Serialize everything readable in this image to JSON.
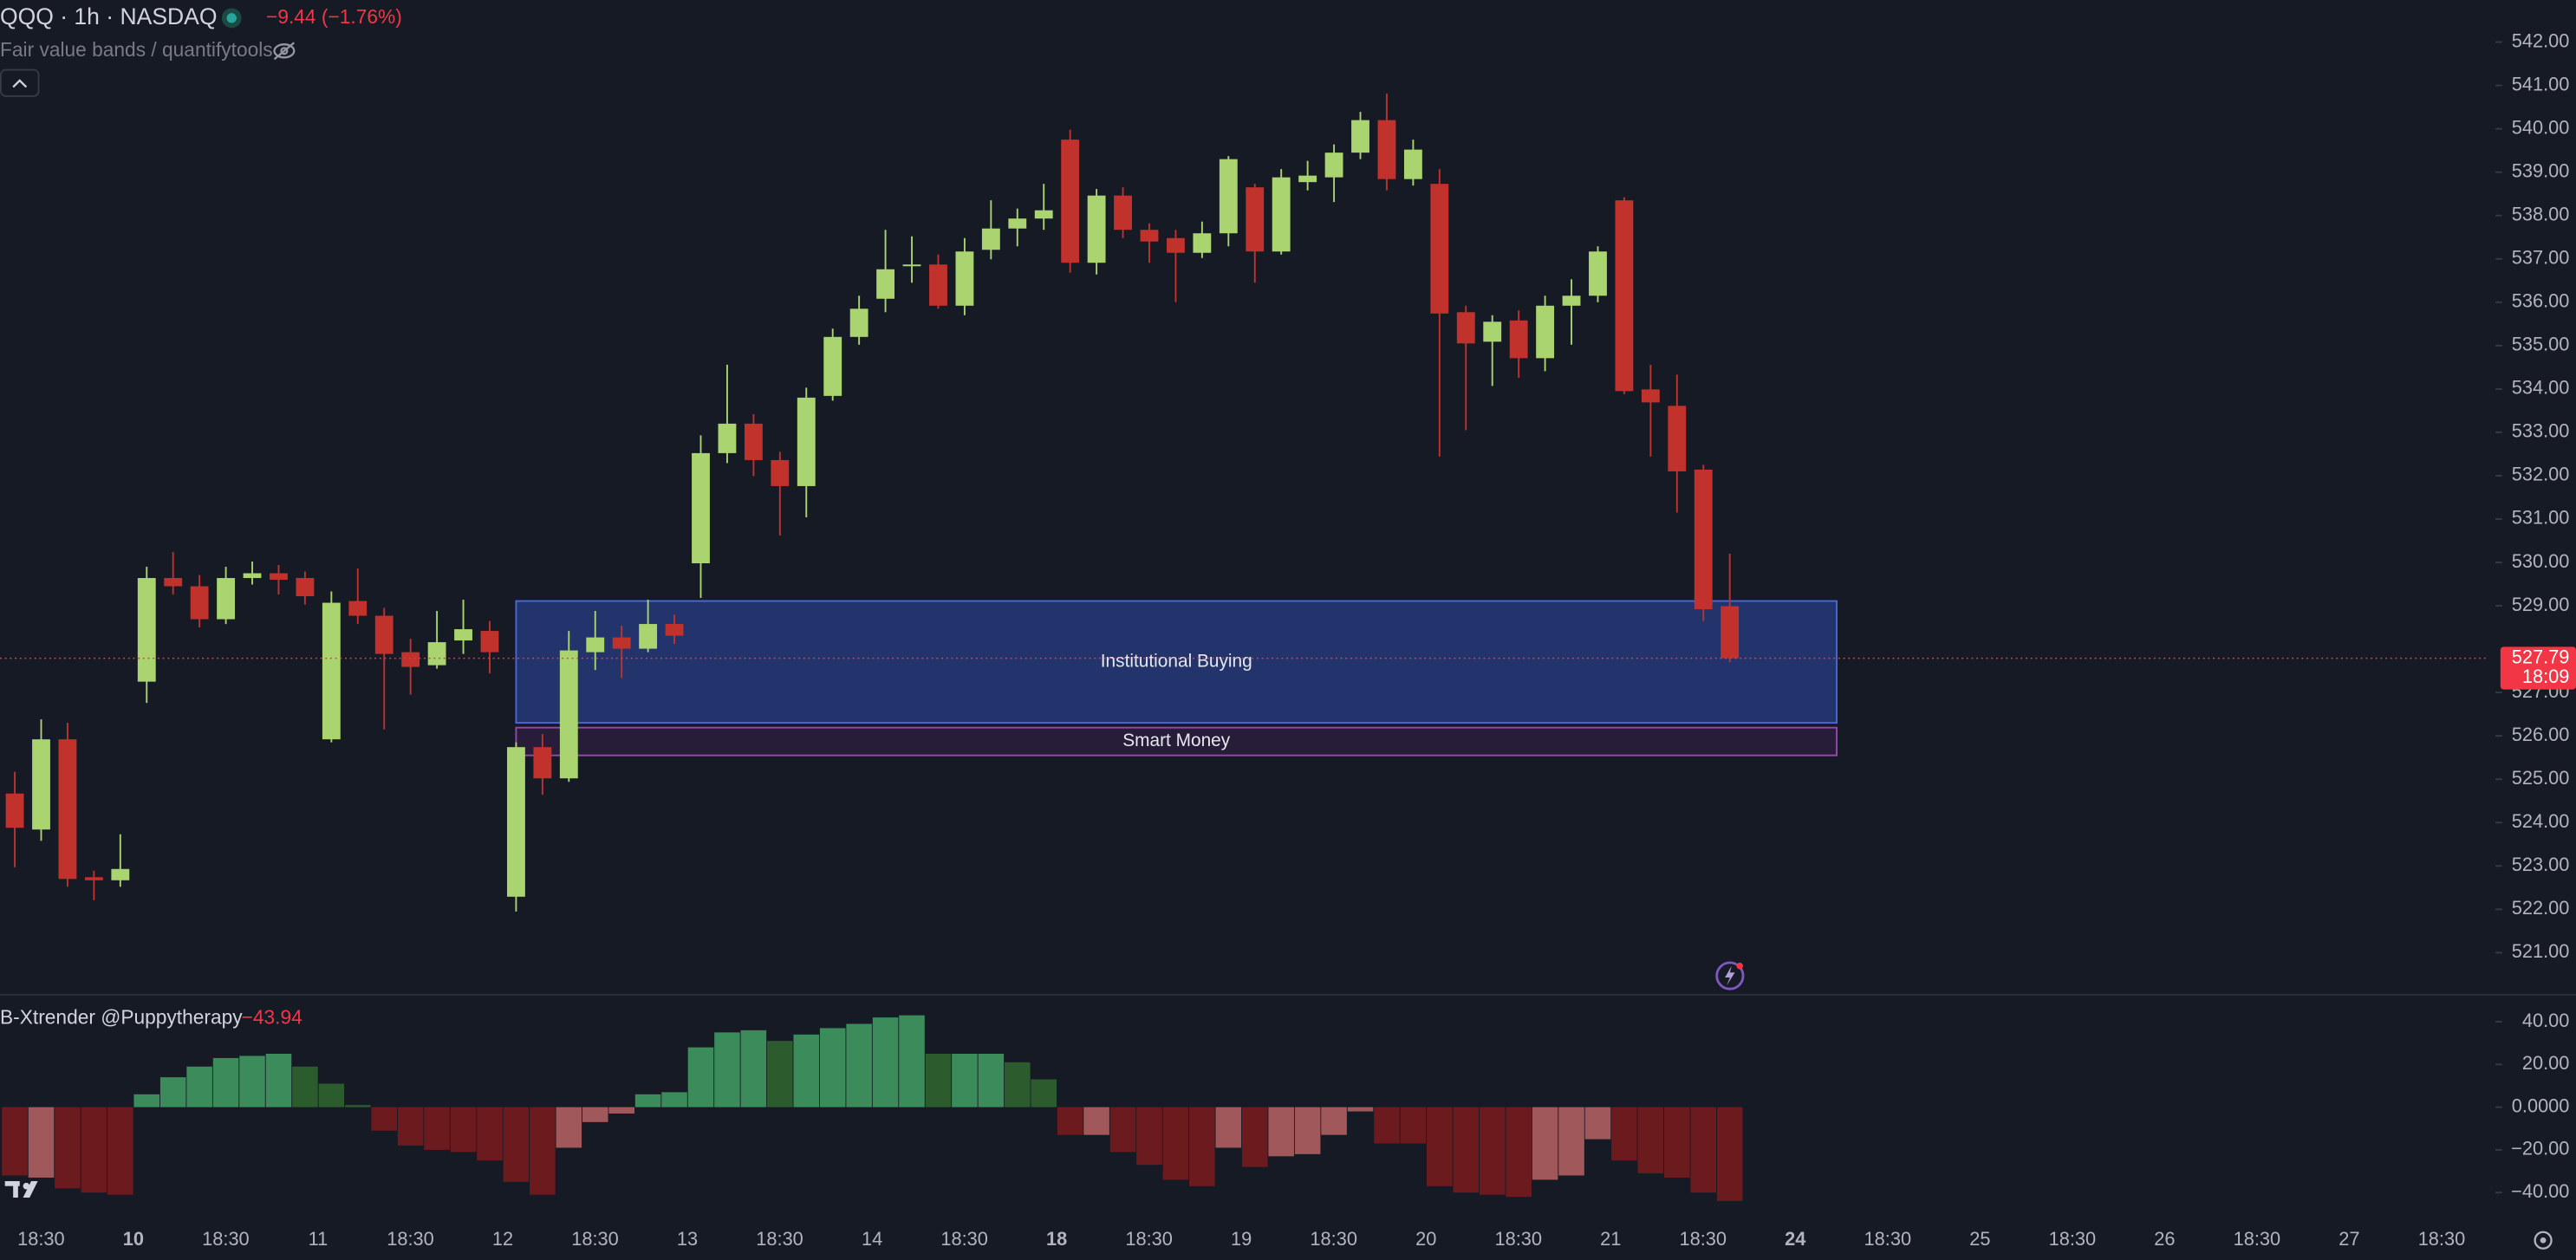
{
  "chart_data": [
    {
      "type": "candlestick",
      "title": "QQQ · 1h · NASDAQ",
      "change": "−9.44 (−1.76%)",
      "indicator": "Fair value bands / quantifytools",
      "up_color": "#a9d46f",
      "down_color": "#c1322d",
      "open": [
        524.67,
        523.84,
        525.92,
        522.74,
        522.67,
        527.25,
        529.64,
        529.45,
        528.69,
        529.64,
        529.75,
        529.64,
        525.92,
        529.11,
        528.77,
        527.93,
        527.63,
        528.2,
        528.42,
        522.29,
        525.74,
        525.02,
        527.93,
        528.27,
        528.01,
        528.58,
        529.98,
        532.52,
        533.2,
        532.36,
        531.76,
        533.84,
        535.2,
        536.08,
        536.83,
        536.87,
        535.92,
        537.21,
        537.7,
        537.93,
        539.75,
        536.91,
        538.46,
        537.67,
        537.48,
        537.14,
        537.59,
        538.65,
        537.17,
        538.77,
        538.88,
        539.45,
        540.2,
        538.84,
        538.73,
        535.77,
        535.09,
        535.58,
        534.71,
        535.92,
        536.15,
        538.35,
        533.99,
        533.61,
        532.14,
        528.99
      ],
      "high": [
        525.17,
        526.38,
        526.3,
        522.89,
        523.73,
        529.9,
        530.24,
        529.71,
        529.9,
        530.02,
        529.94,
        529.79,
        529.33,
        529.86,
        528.95,
        528.24,
        528.88,
        529.14,
        528.65,
        525.85,
        526.04,
        528.42,
        528.88,
        528.54,
        529.14,
        528.8,
        532.93,
        534.56,
        533.42,
        532.55,
        534.03,
        535.39,
        536.15,
        537.67,
        537.52,
        537.1,
        537.48,
        538.35,
        538.16,
        538.73,
        539.98,
        538.61,
        538.65,
        537.82,
        537.67,
        537.86,
        539.37,
        538.73,
        539.07,
        539.26,
        539.64,
        540.39,
        540.81,
        539.75,
        539.07,
        535.92,
        535.7,
        535.81,
        536.15,
        536.53,
        537.29,
        538.42,
        534.56,
        534.33,
        532.25,
        530.2
      ],
      "low": [
        522.97,
        523.58,
        522.52,
        522.21,
        522.52,
        526.76,
        529.26,
        528.5,
        528.58,
        529.49,
        529.26,
        529.03,
        525.85,
        528.58,
        526.15,
        526.95,
        527.55,
        527.89,
        527.44,
        521.95,
        524.64,
        524.94,
        527.52,
        527.33,
        527.93,
        528.12,
        529.18,
        532.29,
        531.99,
        530.62,
        531.04,
        533.73,
        535.02,
        535.77,
        536.45,
        535.85,
        535.7,
        536.99,
        537.29,
        537.67,
        536.68,
        536.64,
        537.48,
        536.91,
        536.0,
        537.02,
        537.29,
        536.45,
        537.1,
        538.58,
        538.31,
        539.3,
        538.58,
        538.69,
        532.44,
        533.05,
        534.07,
        534.26,
        534.41,
        535.02,
        536.0,
        533.88,
        532.44,
        531.15,
        528.65,
        527.7
      ],
      "close": [
        523.88,
        525.92,
        522.7,
        522.67,
        522.93,
        529.64,
        529.45,
        528.69,
        529.64,
        529.75,
        529.6,
        529.22,
        529.07,
        528.77,
        527.89,
        527.59,
        528.16,
        528.46,
        527.93,
        525.74,
        525.02,
        527.97,
        528.27,
        528.01,
        528.58,
        528.31,
        532.52,
        533.2,
        532.36,
        531.76,
        533.8,
        535.2,
        535.85,
        536.76,
        536.87,
        535.92,
        537.17,
        537.7,
        537.93,
        538.12,
        536.91,
        538.46,
        537.67,
        537.4,
        537.14,
        537.59,
        539.3,
        537.17,
        538.88,
        538.92,
        539.45,
        540.2,
        538.84,
        539.52,
        535.74,
        535.05,
        535.55,
        534.71,
        535.92,
        536.15,
        537.17,
        533.95,
        533.69,
        532.1,
        528.92,
        527.79
      ],
      "ylim": [
        520.05,
        542.97
      ],
      "yticks": [
        {
          "value": 521,
          "label": "521.00"
        },
        {
          "value": 522,
          "label": "522.00"
        },
        {
          "value": 523,
          "label": "523.00"
        },
        {
          "value": 524,
          "label": "524.00"
        },
        {
          "value": 525,
          "label": "525.00"
        },
        {
          "value": 526,
          "label": "526.00"
        },
        {
          "value": 527,
          "label": "527.00"
        },
        {
          "value": 529,
          "label": "529.00"
        },
        {
          "value": 530,
          "label": "530.00"
        },
        {
          "value": 531,
          "label": "531.00"
        },
        {
          "value": 532,
          "label": "532.00"
        },
        {
          "value": 533,
          "label": "533.00"
        },
        {
          "value": 534,
          "label": "534.00"
        },
        {
          "value": 535,
          "label": "535.00"
        },
        {
          "value": 536,
          "label": "536.00"
        },
        {
          "value": 537,
          "label": "537.00"
        },
        {
          "value": 538,
          "label": "538.00"
        },
        {
          "value": 539,
          "label": "539.00"
        },
        {
          "value": 540,
          "label": "540.00"
        },
        {
          "value": 541,
          "label": "541.00"
        },
        {
          "value": 542,
          "label": "542.00"
        }
      ],
      "zones": [
        {
          "label": "Institutional Buying",
          "top": 529.11,
          "bottom": 526.3,
          "fill": "#243a78",
          "stroke": "#4a68d8"
        },
        {
          "label": "Smart Money",
          "top": 526.19,
          "bottom": 525.55,
          "fill": "#2a1f3c",
          "stroke": "#9a46b0"
        }
      ],
      "last_price": 527.79,
      "countdown": "18:09",
      "last_color": "#f23645",
      "time_labels": [
        {
          "text": "18:30",
          "bold": false
        },
        {
          "text": "10",
          "bold": true
        },
        {
          "text": "18:30",
          "bold": false
        },
        {
          "text": "11",
          "bold": false
        },
        {
          "text": "18:30",
          "bold": false
        },
        {
          "text": "12",
          "bold": false
        },
        {
          "text": "18:30",
          "bold": false
        },
        {
          "text": "13",
          "bold": false
        },
        {
          "text": "18:30",
          "bold": false
        },
        {
          "text": "14",
          "bold": false
        },
        {
          "text": "18:30",
          "bold": false
        },
        {
          "text": "18",
          "bold": true
        },
        {
          "text": "18:30",
          "bold": false
        },
        {
          "text": "19",
          "bold": false
        },
        {
          "text": "18:30",
          "bold": false
        },
        {
          "text": "20",
          "bold": false
        },
        {
          "text": "18:30",
          "bold": false
        },
        {
          "text": "21",
          "bold": false
        },
        {
          "text": "18:30",
          "bold": false
        },
        {
          "text": "24",
          "bold": true
        },
        {
          "text": "18:30",
          "bold": false
        },
        {
          "text": "25",
          "bold": false
        },
        {
          "text": "18:30",
          "bold": false
        },
        {
          "text": "26",
          "bold": false
        },
        {
          "text": "18:30",
          "bold": false
        },
        {
          "text": "27",
          "bold": false
        },
        {
          "text": "18:30",
          "bold": false
        }
      ]
    },
    {
      "type": "bar",
      "title": "B-Xtrender @Puppytherapy",
      "last_value": {
        "value": -43.94,
        "label": "−43.94"
      },
      "values": [
        -32,
        -33,
        -38,
        -40,
        -41,
        6,
        14,
        19,
        23,
        24,
        25,
        19,
        11,
        1,
        -11,
        -18,
        -20,
        -21,
        -25,
        -35,
        -41,
        -19,
        -7,
        -3,
        6,
        7,
        28,
        35,
        36,
        31,
        34,
        37,
        39,
        42,
        43,
        25,
        25,
        25,
        21,
        13,
        -13,
        -13,
        -21,
        -27,
        -34,
        -37,
        -19,
        -28,
        -23,
        -22,
        -13,
        -2,
        -17,
        -17,
        -37,
        -40,
        -41,
        -42,
        -34,
        -32,
        -15,
        -25,
        -31,
        -33,
        -40,
        -43.94
      ],
      "colors": [
        "#6b1a1e",
        "#a0585a",
        "#6b1a1e",
        "#6b1a1e",
        "#6b1a1e",
        "#3b8b5b",
        "#3b8b5b",
        "#3b8b5b",
        "#3b8b5b",
        "#3b8b5b",
        "#3b8b5b",
        "#2c5c2e",
        "#2c5c2e",
        "#2c5c2e",
        "#6b1a1e",
        "#6b1a1e",
        "#6b1a1e",
        "#6b1a1e",
        "#6b1a1e",
        "#6b1a1e",
        "#6b1a1e",
        "#a0585a",
        "#a0585a",
        "#a0585a",
        "#3b8b5b",
        "#3b8b5b",
        "#3b8b5b",
        "#3b8b5b",
        "#3b8b5b",
        "#2c5c2e",
        "#3b8b5b",
        "#3b8b5b",
        "#3b8b5b",
        "#3b8b5b",
        "#3b8b5b",
        "#2c5c2e",
        "#3b8b5b",
        "#3b8b5b",
        "#2c5c2e",
        "#2c5c2e",
        "#6b1a1e",
        "#a0585a",
        "#6b1a1e",
        "#6b1a1e",
        "#6b1a1e",
        "#6b1a1e",
        "#a0585a",
        "#6b1a1e",
        "#a0585a",
        "#a0585a",
        "#a0585a",
        "#a0585a",
        "#6b1a1e",
        "#6b1a1e",
        "#6b1a1e",
        "#6b1a1e",
        "#6b1a1e",
        "#6b1a1e",
        "#a0585a",
        "#a0585a",
        "#a0585a",
        "#6b1a1e",
        "#6b1a1e",
        "#6b1a1e",
        "#6b1a1e",
        "#6b1a1e"
      ],
      "ylim": [
        -50.8,
        51.5
      ],
      "yticks": [
        {
          "value": 40,
          "label": "40.00"
        },
        {
          "value": 20,
          "label": "20.00"
        },
        {
          "value": 0,
          "label": "0.0000"
        },
        {
          "value": -20,
          "label": "−20.00"
        },
        {
          "value": -40,
          "label": "−40.00"
        }
      ]
    }
  ]
}
